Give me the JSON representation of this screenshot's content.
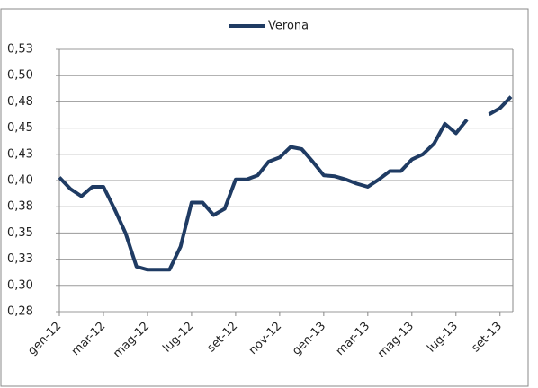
{
  "chart_data": {
    "type": "line",
    "categories": [
      "gen-12",
      null,
      null,
      null,
      "mar-12",
      null,
      null,
      null,
      "mag-12",
      null,
      null,
      null,
      "lug-12",
      null,
      null,
      null,
      "set-12",
      null,
      null,
      null,
      "nov-12",
      null,
      null,
      null,
      "gen-13",
      null,
      null,
      null,
      "mar-13",
      null,
      null,
      null,
      "mag-13",
      null,
      null,
      null,
      "lug-13",
      null,
      null,
      null,
      "set-13",
      null
    ],
    "series": [
      {
        "name": "Verona",
        "color": "#1f3b63",
        "values": [
          0.403,
          0.392,
          0.385,
          0.394,
          0.394,
          0.373,
          0.35,
          0.318,
          0.315,
          0.315,
          0.315,
          0.337,
          0.379,
          0.379,
          0.367,
          0.373,
          0.401,
          0.401,
          0.405,
          0.418,
          0.422,
          0.432,
          0.43,
          0.418,
          0.405,
          0.404,
          0.401,
          0.397,
          0.394,
          0.401,
          0.409,
          0.409,
          0.42,
          0.425,
          0.435,
          0.454,
          0.445,
          0.458,
          null,
          0.463,
          0.469,
          0.48
        ]
      }
    ],
    "ylim": [
      0.275,
      0.525
    ],
    "yticks": [
      {
        "value": 0.275,
        "label": "0,28"
      },
      {
        "value": 0.3,
        "label": "0,30"
      },
      {
        "value": 0.325,
        "label": "0,33"
      },
      {
        "value": 0.35,
        "label": "0,35"
      },
      {
        "value": 0.375,
        "label": "0,38"
      },
      {
        "value": 0.4,
        "label": "0,40"
      },
      {
        "value": 0.425,
        "label": "0,43"
      },
      {
        "value": 0.45,
        "label": "0,45"
      },
      {
        "value": 0.475,
        "label": "0,48"
      },
      {
        "value": 0.5,
        "label": "0,50"
      },
      {
        "value": 0.525,
        "label": "0,53"
      }
    ],
    "grid": true,
    "legend": "top"
  }
}
